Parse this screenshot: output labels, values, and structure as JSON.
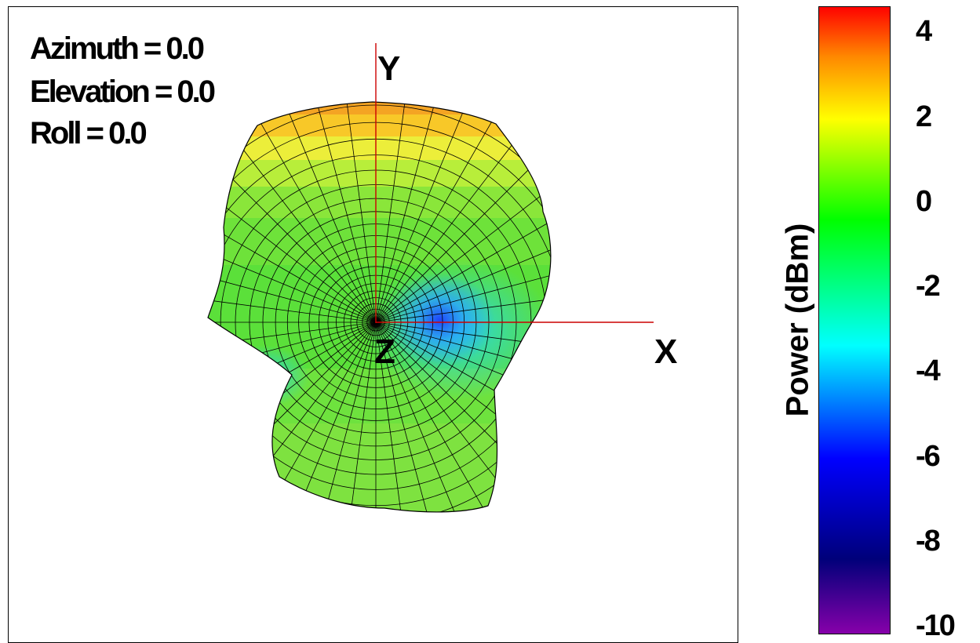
{
  "view": {
    "azimuth_label": "Azimuth = 0.0",
    "elevation_label": "Elevation = 0.0",
    "roll_label": "Roll = 0.0"
  },
  "axes": {
    "x": "X",
    "y": "Y",
    "z": "Z"
  },
  "chart_data": {
    "type": "surface",
    "colorbar": {
      "title": "Power (dBm)",
      "min": -10,
      "max": 5,
      "ticks": [
        4,
        2,
        0,
        -2,
        -4,
        -6,
        -8,
        -10
      ],
      "tick_labels": [
        "4",
        "2",
        "0",
        "-2",
        "-4",
        "-6",
        "-8",
        "-10"
      ],
      "colormap": [
        "#8800aa",
        "#00007a",
        "#0000ff",
        "#00ffff",
        "#00ff00",
        "#ffff00",
        "#ff8800",
        "#ff0000"
      ]
    },
    "axis_color": "#cc0000",
    "mesh_color": "#000000"
  }
}
